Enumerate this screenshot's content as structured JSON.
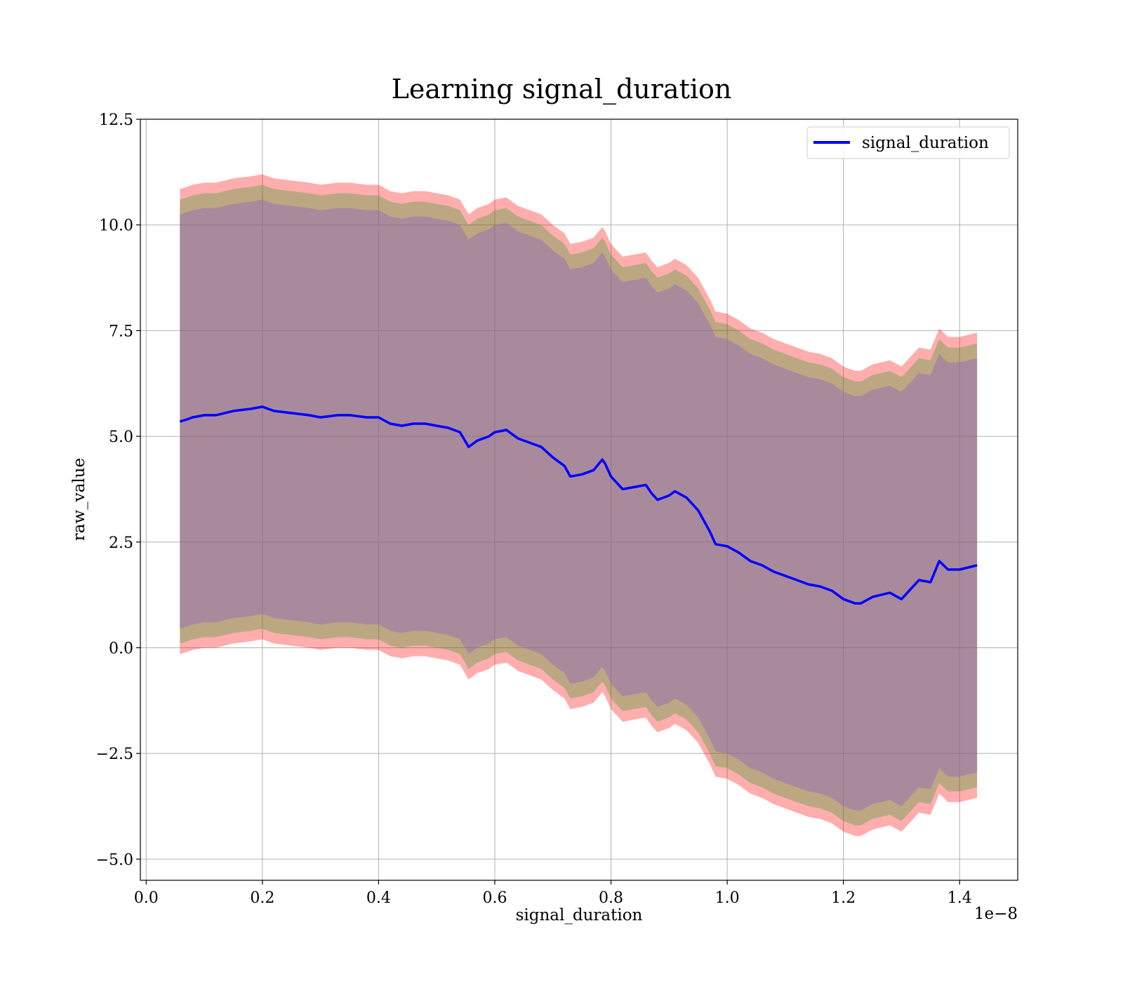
{
  "chart_data": {
    "type": "line",
    "title": "Learning signal_duration",
    "xlabel": "signal_duration",
    "ylabel": "raw_value",
    "x_offset_label": "1e−8",
    "xlim": [
      -0.01,
      1.5
    ],
    "ylim": [
      -5.5,
      12.5
    ],
    "x_ticks": [
      0.0,
      0.2,
      0.4,
      0.6,
      0.8,
      1.0,
      1.2,
      1.4
    ],
    "x_tick_labels": [
      "0.0",
      "0.2",
      "0.4",
      "0.6",
      "0.8",
      "1.0",
      "1.2",
      "1.4"
    ],
    "y_ticks": [
      -5.0,
      -2.5,
      0.0,
      2.5,
      5.0,
      7.5,
      10.0,
      12.5
    ],
    "y_tick_labels": [
      "−5.0",
      "−2.5",
      "0.0",
      "2.5",
      "5.0",
      "7.5",
      "10.0",
      "12.5"
    ],
    "grid": true,
    "legend_position": "top-right",
    "colors": {
      "line": "#0000ff",
      "band": "#ff0000",
      "band_inner": "#2ca02c",
      "band_core": "#9467bd",
      "grid": "#b0b0b0"
    },
    "series": [
      {
        "name": "signal_duration",
        "x": [
          0.058,
          0.07,
          0.08,
          0.1,
          0.12,
          0.15,
          0.18,
          0.2,
          0.22,
          0.25,
          0.28,
          0.3,
          0.33,
          0.35,
          0.38,
          0.4,
          0.42,
          0.44,
          0.46,
          0.48,
          0.5,
          0.52,
          0.54,
          0.555,
          0.57,
          0.59,
          0.6,
          0.62,
          0.64,
          0.66,
          0.68,
          0.7,
          0.72,
          0.73,
          0.75,
          0.77,
          0.785,
          0.79,
          0.8,
          0.82,
          0.84,
          0.86,
          0.87,
          0.88,
          0.9,
          0.91,
          0.93,
          0.95,
          0.97,
          0.98,
          1.0,
          1.02,
          1.04,
          1.06,
          1.08,
          1.1,
          1.12,
          1.14,
          1.16,
          1.18,
          1.2,
          1.22,
          1.23,
          1.25,
          1.28,
          1.3,
          1.33,
          1.35,
          1.365,
          1.38,
          1.4,
          1.43
        ],
        "y": [
          5.35,
          5.4,
          5.45,
          5.5,
          5.5,
          5.6,
          5.65,
          5.7,
          5.6,
          5.55,
          5.5,
          5.45,
          5.5,
          5.5,
          5.45,
          5.45,
          5.3,
          5.25,
          5.3,
          5.3,
          5.25,
          5.2,
          5.1,
          4.75,
          4.9,
          5.0,
          5.1,
          5.15,
          4.95,
          4.85,
          4.75,
          4.5,
          4.3,
          4.05,
          4.1,
          4.2,
          4.45,
          4.35,
          4.05,
          3.75,
          3.8,
          3.85,
          3.65,
          3.5,
          3.6,
          3.7,
          3.55,
          3.25,
          2.75,
          2.45,
          2.4,
          2.25,
          2.05,
          1.95,
          1.8,
          1.7,
          1.6,
          1.5,
          1.45,
          1.35,
          1.15,
          1.05,
          1.05,
          1.2,
          1.3,
          1.15,
          1.6,
          1.55,
          2.05,
          1.85,
          1.85,
          1.95
        ]
      }
    ],
    "band_half_widths": [
      5.5,
      5.25,
      4.9
    ]
  }
}
